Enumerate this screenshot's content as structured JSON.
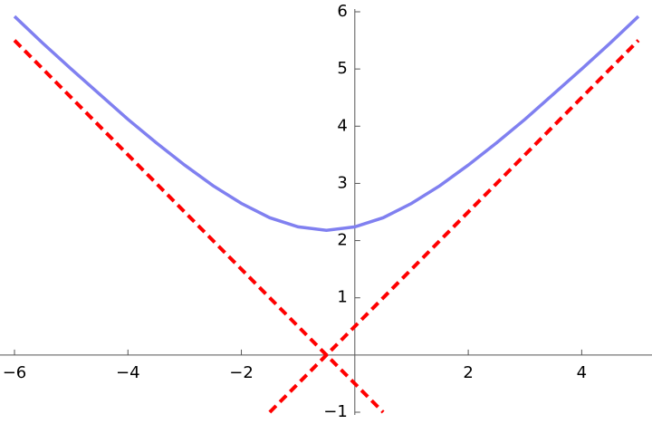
{
  "chart_data": {
    "type": "line",
    "x": [
      -6,
      -5.5,
      -5,
      -4.5,
      -4,
      -3.5,
      -3,
      -2.5,
      -2,
      -1.5,
      -1,
      -0.5,
      0,
      0.5,
      1,
      1.5,
      2,
      2.5,
      3,
      3.5,
      4,
      4.5,
      5
    ],
    "series": [
      {
        "color": "#8080f0",
        "dashed": false,
        "values": [
          5.92,
          5.45,
          5,
          4.56,
          4.12,
          3.71,
          3.32,
          2.96,
          2.65,
          2.4,
          2.24,
          2.18,
          2.24,
          2.4,
          2.65,
          2.96,
          3.32,
          3.71,
          4.12,
          4.56,
          5,
          5.45,
          5.92
        ]
      },
      {
        "color": "#ff0000",
        "dashed": true,
        "x": [
          -6,
          0.5
        ],
        "values": [
          5.5,
          -1
        ]
      },
      {
        "color": "#ff0000",
        "dashed": true,
        "x": [
          -1.5,
          5
        ],
        "values": [
          -1,
          5.5
        ]
      }
    ],
    "xlim": [
      -6,
      5
    ],
    "ylim": [
      -1,
      6
    ],
    "xticks": [
      {
        "value": -6,
        "label": "−6"
      },
      {
        "value": -4,
        "label": "−4"
      },
      {
        "value": -2,
        "label": "−2"
      },
      2,
      4
    ],
    "yticks": [
      {
        "value": -1,
        "label": "−1"
      },
      1,
      2,
      3,
      4,
      5,
      6
    ]
  }
}
